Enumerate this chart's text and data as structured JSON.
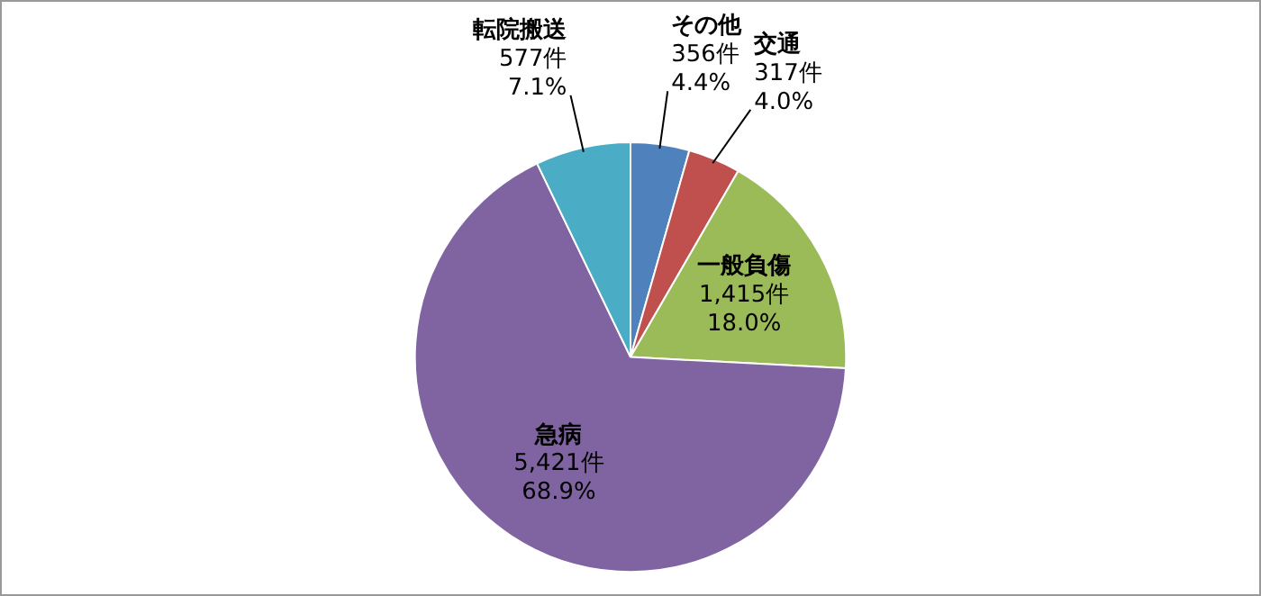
{
  "chart_data": {
    "type": "pie",
    "categories": [
      "その他",
      "交通",
      "一般負傷",
      "急病",
      "転院搬送"
    ],
    "values": [
      356,
      317,
      1415,
      5421,
      577
    ],
    "colors": [
      "#4f81bd",
      "#c0504d",
      "#9bbb59",
      "#8064a2",
      "#4bacc6"
    ],
    "value_labels": [
      "356件\n4.4%",
      "317件\n4.0%",
      "1,415件\n18.0%",
      "5,421件\n68.9%",
      "577件\n7.1%"
    ],
    "legend": false
  }
}
